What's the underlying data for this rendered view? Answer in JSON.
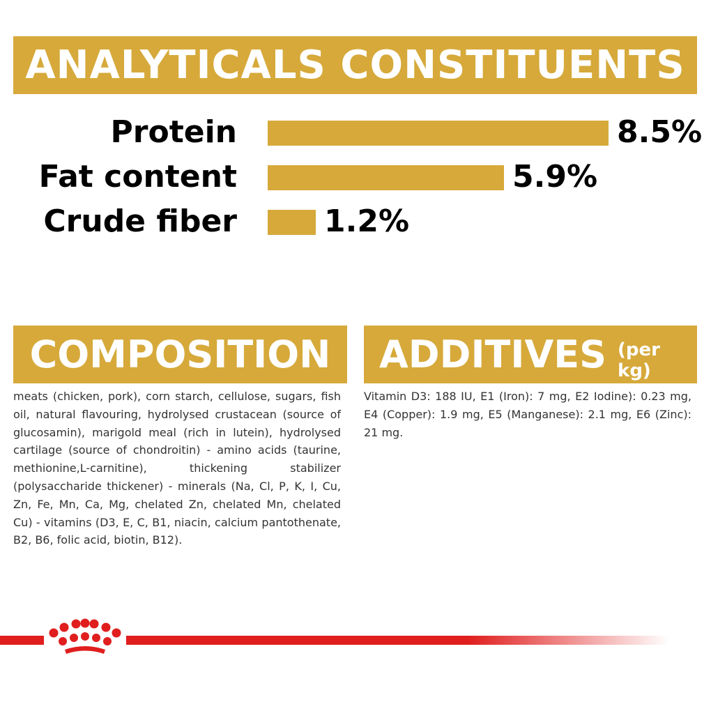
{
  "headers": {
    "analytical": "ANALYTICALS CONSTITUENTS",
    "composition": "COMPOSITION",
    "additives": "ADDITIVES",
    "additives_unit": "(per kg)"
  },
  "chart_data": {
    "type": "bar",
    "orientation": "horizontal",
    "title": "ANALYTICALS CONSTITUENTS",
    "categories": [
      "Protein",
      "Fat content",
      "Crude fiber"
    ],
    "values": [
      8.5,
      5.9,
      1.2
    ],
    "value_labels": [
      "8.5%",
      "5.9%",
      "1.2%"
    ],
    "unit": "%",
    "xlim": [
      0,
      8.5
    ],
    "grid": false,
    "bar_color": "#d6a93a"
  },
  "composition_text": "meats (chicken, pork), corn starch, cellulose, sugars, fish oil, natural flavouring, hydrolysed crustacean (source of glucosamin), marigold meal (rich in lutein), hydrolysed cartilage (source of chondroitin) - amino acids (taurine, methionine,L-carnitine), thickening stabilizer (polysaccharide thickener) - minerals (Na, Cl, P, K, I, Cu, Zn, Fe, Mn, Ca, Mg, chelated Zn, chelated Mn, chelated Cu) - vitamins (D3, E, C, B1, niacin, calcium pantothenate, B2, B6, folic acid, biotin, B12).",
  "additives_text": "Vitamin D3: 188 IU, E1 (Iron): 7 mg, E2 Iodine): 0.23 mg, E4 (Copper): 1.9 mg, E5 (Manganese): 2.1 mg, E6 (Zinc): 21 mg.",
  "colors": {
    "accent": "#d6a93a",
    "brand_red": "#e01e1e"
  },
  "logo": "royal-canin-crown-icon"
}
